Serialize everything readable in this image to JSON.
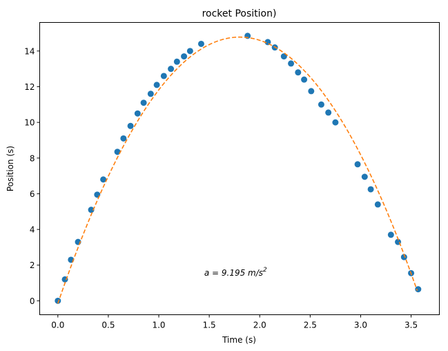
{
  "chart_data": {
    "type": "scatter",
    "title": "rocket Position)",
    "xlabel": "Time (s)",
    "ylabel": "Position (s)",
    "xlim": [
      -0.18,
      3.78
    ],
    "ylim": [
      -0.78,
      15.6
    ],
    "xticks": [
      0.0,
      0.5,
      1.0,
      1.5,
      2.0,
      2.5,
      3.0,
      3.5
    ],
    "xtick_labels": [
      "0.0",
      "0.5",
      "1.0",
      "1.5",
      "2.0",
      "2.5",
      "3.0",
      "3.5"
    ],
    "yticks": [
      0,
      2,
      4,
      6,
      8,
      10,
      12,
      14
    ],
    "ytick_labels": [
      "0",
      "2",
      "4",
      "6",
      "8",
      "10",
      "12",
      "14"
    ],
    "grid": false,
    "annotation": {
      "text": "a = 9.195 m/s",
      "superscript": "2",
      "x": 1.45,
      "y": 1.4
    },
    "series": [
      {
        "kind": "scatter",
        "color": "#1f77b4",
        "x": [
          0.0,
          0.07,
          0.13,
          0.2,
          0.33,
          0.39,
          0.45,
          0.59,
          0.65,
          0.72,
          0.79,
          0.85,
          0.92,
          0.98,
          1.05,
          1.12,
          1.18,
          1.25,
          1.31,
          1.42,
          1.88,
          2.08,
          2.15,
          2.24,
          2.31,
          2.38,
          2.44,
          2.51,
          2.61,
          2.68,
          2.75,
          2.97,
          3.04,
          3.1,
          3.17,
          3.3,
          3.37,
          3.43,
          3.5,
          3.57
        ],
        "y": [
          0.0,
          1.2,
          2.3,
          3.3,
          5.1,
          5.95,
          6.8,
          8.35,
          9.1,
          9.8,
          10.5,
          11.1,
          11.6,
          12.1,
          12.6,
          13.0,
          13.4,
          13.7,
          14.0,
          14.4,
          14.85,
          14.5,
          14.2,
          13.7,
          13.3,
          12.8,
          12.4,
          11.75,
          11.0,
          10.55,
          10.0,
          7.65,
          6.95,
          6.25,
          5.4,
          3.7,
          3.3,
          2.45,
          1.55,
          0.65
        ]
      },
      {
        "kind": "line",
        "style": "dashed",
        "color": "#ff7f0e",
        "fit": {
          "v0": 16.57,
          "a": 9.195,
          "y0": -0.15
        },
        "x_range": [
          0.0,
          3.56
        ]
      }
    ]
  }
}
